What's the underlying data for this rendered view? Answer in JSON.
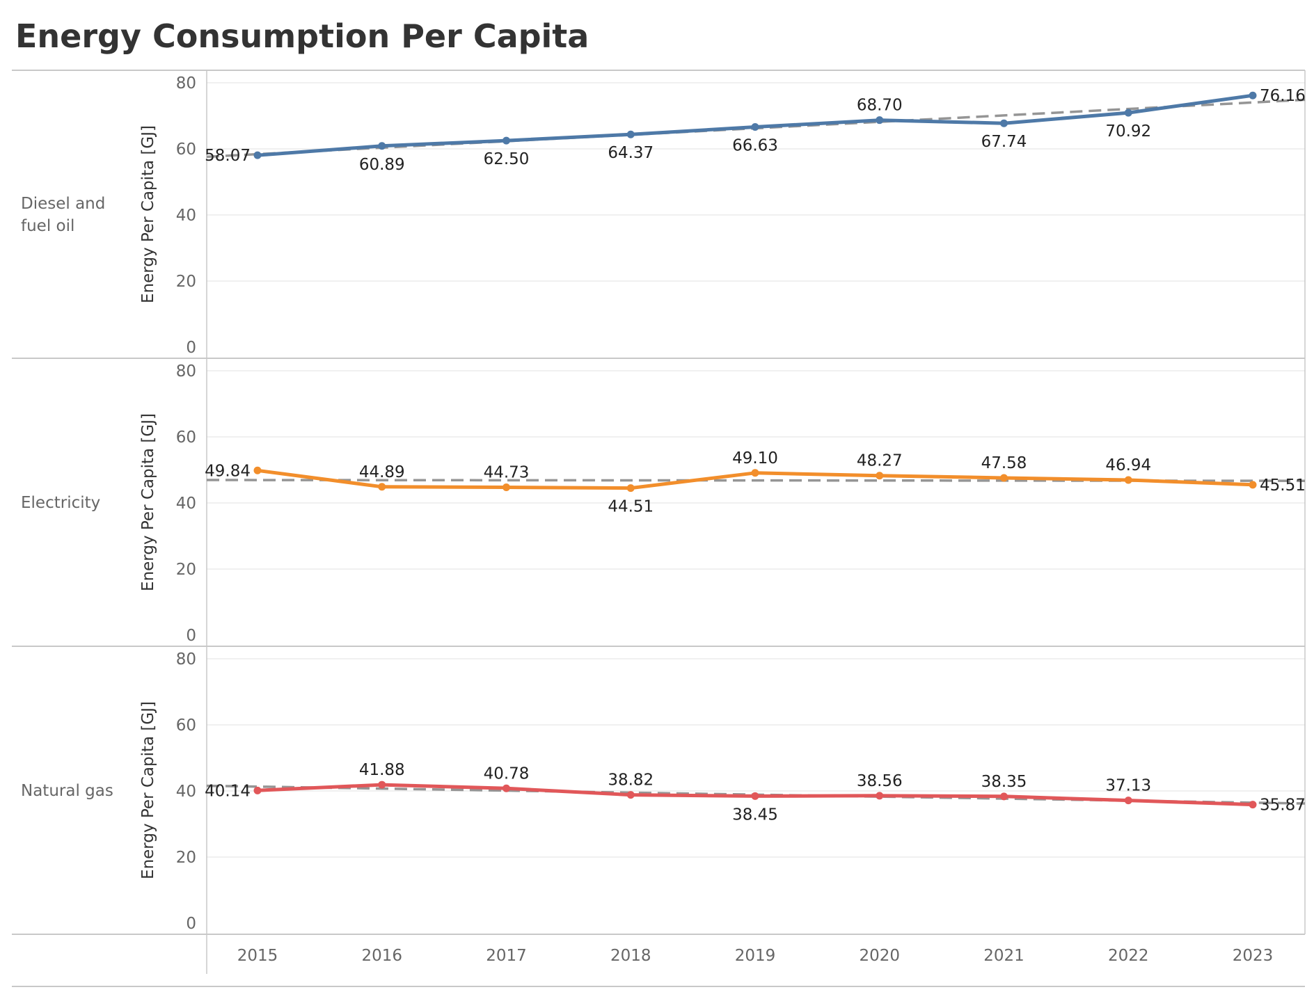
{
  "chart_data": {
    "type": "line",
    "title": "Energy Consumption Per Capita",
    "ylabel": "Energy Per Capita [GJ]",
    "xlabel": "",
    "x": [
      "2015",
      "2016",
      "2017",
      "2018",
      "2019",
      "2020",
      "2021",
      "2022",
      "2023"
    ],
    "ylim": [
      0,
      80
    ],
    "yticks": [
      0,
      20,
      40,
      60,
      80
    ],
    "grid": true,
    "trend_lines": true,
    "series": [
      {
        "name": "Diesel and fuel oil",
        "color": "#4e79a7",
        "values": [
          58.07,
          60.89,
          62.5,
          64.37,
          66.63,
          68.7,
          67.74,
          70.92,
          76.16
        ],
        "labels": [
          "58.07",
          "60.89",
          "62.50",
          "64.37",
          "66.63",
          "68.70",
          "67.74",
          "70.92",
          "76.16"
        ]
      },
      {
        "name": "Electricity",
        "color": "#f28e2b",
        "values": [
          49.84,
          44.89,
          44.73,
          44.51,
          49.1,
          48.27,
          47.58,
          46.94,
          45.51
        ],
        "labels": [
          "49.84",
          "44.89",
          "44.73",
          "44.51",
          "49.10",
          "48.27",
          "47.58",
          "46.94",
          "45.51"
        ]
      },
      {
        "name": "Natural gas",
        "color": "#e15759",
        "values": [
          40.14,
          41.88,
          40.78,
          38.82,
          38.45,
          38.56,
          38.35,
          37.13,
          35.87
        ],
        "labels": [
          "40.14",
          "41.88",
          "40.78",
          "38.82",
          "38.45",
          "38.56",
          "38.35",
          "37.13",
          "35.87"
        ]
      }
    ]
  }
}
